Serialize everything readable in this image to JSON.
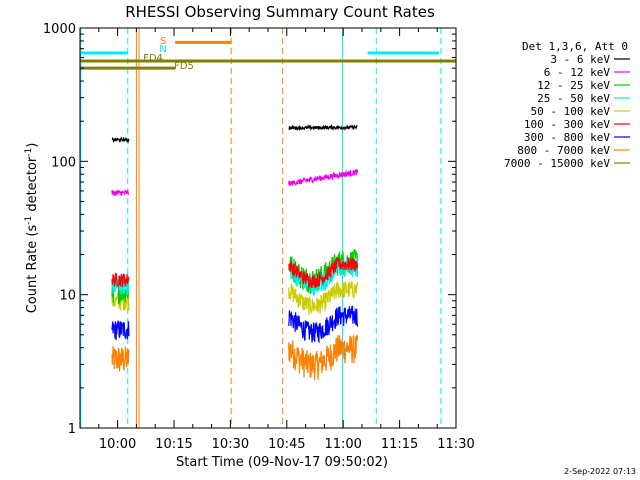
{
  "chart_data": {
    "type": "line",
    "title": "RHESSI Observing Summary Count Rates",
    "xlabel": "Start Time (09-Nov-17 09:50:02)",
    "ylabel_main": "Count Rate (s",
    "ylabel_sup1": "-1",
    "ylabel_mid": " detector",
    "ylabel_sup2": "-1",
    "ylabel_end": ")",
    "y_scale": "log",
    "ylim": [
      1,
      1000
    ],
    "xlim_minutes": [
      0,
      100
    ],
    "x_ticks": [
      {
        "m": 10,
        "label": "10:00"
      },
      {
        "m": 25,
        "label": "10:15"
      },
      {
        "m": 40,
        "label": "10:30"
      },
      {
        "m": 55,
        "label": "10:45"
      },
      {
        "m": 70,
        "label": "11:00"
      },
      {
        "m": 85,
        "label": "11:15"
      },
      {
        "m": 100,
        "label": "11:30"
      }
    ],
    "y_ticks": [
      {
        "v": 1,
        "label": "1"
      },
      {
        "v": 10,
        "label": "10"
      },
      {
        "v": 100,
        "label": "100"
      },
      {
        "v": 1000,
        "label": "1000"
      }
    ],
    "legend_title": "Det 1,3,6, Att 0",
    "legend_position": "right",
    "series": [
      {
        "name": "3 - 6 keV",
        "color": "#000000",
        "seg1": 145,
        "seg2a": 178,
        "seg2b": 180
      },
      {
        "name": "6 - 12 keV",
        "color": "#ee00ee",
        "seg1": 58,
        "seg2a": 68,
        "seg2b": 83
      },
      {
        "name": "12 - 25 keV",
        "color": "#00cc00",
        "seg1": 11,
        "seg2a": 17,
        "seg2b": 18
      },
      {
        "name": "25 - 50 keV",
        "color": "#00eeee",
        "seg1": 12,
        "seg2a": 16,
        "seg2b": 16
      },
      {
        "name": "50 - 100 keV",
        "color": "#cccc00",
        "seg1": 9,
        "seg2a": 11,
        "seg2b": 11
      },
      {
        "name": "100 - 300 keV",
        "color": "#ff0000",
        "seg1": 13,
        "seg2a": 17,
        "seg2b": 17
      },
      {
        "name": "300 - 800 keV",
        "color": "#0000ff",
        "seg1": 5.5,
        "seg2a": 7,
        "seg2b": 7
      },
      {
        "name": "800 - 7000 keV",
        "color": "#ff8000",
        "seg1": 3.3,
        "seg2a": 4,
        "seg2b": 4
      },
      {
        "name": "7000 - 15000 keV",
        "color": "#808000",
        "seg1": null,
        "seg2a": null,
        "seg2b": null
      }
    ],
    "data_segments": [
      {
        "start": 8.5,
        "end": 13.0,
        "shape": "flat"
      },
      {
        "start": 55.5,
        "end": 73.8,
        "shape": "dip"
      }
    ],
    "status_bars": [
      {
        "label": "",
        "color": "#00eeee",
        "level": 650,
        "ranges": [
          [
            0,
            12.7
          ],
          [
            76.5,
            95.5
          ]
        ]
      },
      {
        "label": "S",
        "color": "#ff8000",
        "level": 780,
        "ranges": [
          [
            25.3,
            40.2
          ]
        ]
      },
      {
        "label": "N",
        "color": "#00eeee",
        "level": 690,
        "ranges": []
      },
      {
        "label": "FD4",
        "color": "#808000",
        "level": 565,
        "ranges": [
          [
            0,
            100
          ]
        ]
      },
      {
        "label": "FD5",
        "color": "#808000",
        "level": 500,
        "ranges": [
          [
            0,
            25.3
          ]
        ]
      }
    ],
    "vertical_lines": [
      {
        "m": 0.2,
        "color": "#00eeee",
        "dash": false
      },
      {
        "m": 12.7,
        "color": "#00eeee",
        "dash": true
      },
      {
        "m": 15.0,
        "color": "#ff8000",
        "dash": false
      },
      {
        "m": 15.7,
        "color": "#ff8000",
        "dash": false
      },
      {
        "m": 40.2,
        "color": "#ff8000",
        "dash": true
      },
      {
        "m": 53.9,
        "color": "#ff8000",
        "dash": true
      },
      {
        "m": 69.8,
        "color": "#00eeee",
        "dash": false
      },
      {
        "m": 78.8,
        "color": "#00eeee",
        "dash": true
      },
      {
        "m": 96.0,
        "color": "#00eeee",
        "dash": true
      }
    ],
    "timestamp": "2-Sep-2022 07:13"
  }
}
